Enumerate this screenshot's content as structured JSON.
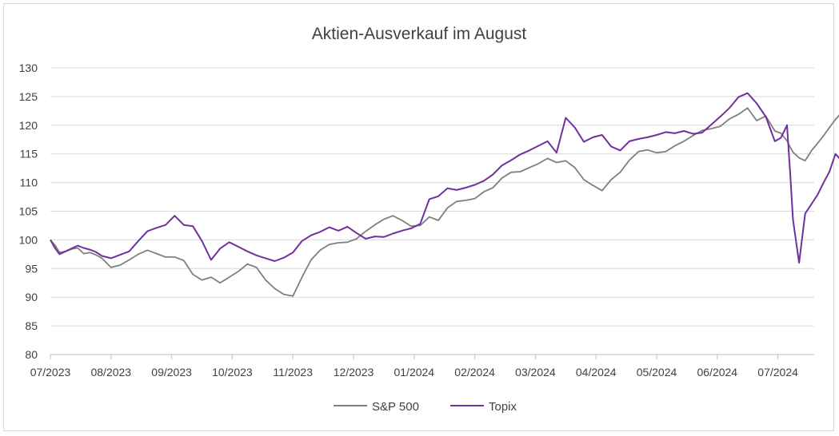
{
  "chart_data": {
    "type": "line",
    "title": "Aktien-Ausverkauf im August",
    "xlabel": "",
    "ylabel": "",
    "ylim": [
      80,
      130
    ],
    "yticks": [
      80,
      85,
      90,
      95,
      100,
      105,
      110,
      115,
      120,
      125,
      130
    ],
    "xticks": [
      "07/2023",
      "08/2023",
      "09/2023",
      "10/2023",
      "11/2023",
      "12/2023",
      "01/2024",
      "02/2024",
      "03/2024",
      "04/2024",
      "05/2024",
      "06/2024",
      "07/2024"
    ],
    "grid": "horizontal",
    "legend_position": "bottom",
    "colors": {
      "S&P 500": "#7f7f7f",
      "Topix": "#7030a0",
      "grid": "#d9d9d9",
      "axis": "#bfbfbf"
    },
    "x": [
      0,
      0.08,
      0.15,
      0.25,
      0.35,
      0.45,
      0.55,
      0.65,
      0.75,
      0.85,
      1,
      1.15,
      1.3,
      1.45,
      1.6,
      1.75,
      1.9,
      2.05,
      2.2,
      2.35,
      2.5,
      2.65,
      2.8,
      2.95,
      3.1,
      3.25,
      3.4,
      3.55,
      3.7,
      3.85,
      4,
      4.15,
      4.3,
      4.45,
      4.6,
      4.75,
      4.9,
      5.05,
      5.2,
      5.35,
      5.5,
      5.65,
      5.8,
      5.95,
      6.1,
      6.25,
      6.4,
      6.55,
      6.7,
      6.85,
      7,
      7.15,
      7.3,
      7.45,
      7.6,
      7.75,
      7.9,
      8.05,
      8.2,
      8.35,
      8.5,
      8.65,
      8.8,
      8.95,
      9.1,
      9.25,
      9.4,
      9.55,
      9.7,
      9.85,
      10,
      10.15,
      10.3,
      10.45,
      10.6,
      10.75,
      10.9,
      11.05,
      11.2,
      11.35,
      11.5,
      11.65,
      11.8,
      11.95,
      12.05,
      12.15,
      12.2,
      12.25,
      12.35,
      12.45,
      12.55,
      12.65,
      12.75,
      12.85,
      12.95,
      13.05
    ],
    "series": [
      {
        "name": "S&P 500",
        "values": [
          100,
          99,
          97.8,
          98,
          98.4,
          98.6,
          97.6,
          97.8,
          97.4,
          96.8,
          95.2,
          95.6,
          96.5,
          97.5,
          98.2,
          97.6,
          97,
          97,
          96.4,
          94,
          93,
          93.5,
          92.5,
          93.5,
          94.5,
          95.8,
          95.2,
          93,
          91.5,
          90.5,
          90.2,
          93.5,
          96.5,
          98.2,
          99.2,
          99.5,
          99.6,
          100.2,
          101.5,
          102.6,
          103.6,
          104.2,
          103.4,
          102.4,
          102.5,
          104,
          103.4,
          105.6,
          106.7,
          106.9,
          107.2,
          108.4,
          109.1,
          110.8,
          111.8,
          111.9,
          112.6,
          113.3,
          114.2,
          113.5,
          113.8,
          112.6,
          110.5,
          109.5,
          108.6,
          110.5,
          111.8,
          113.9,
          115.4,
          115.7,
          115.2,
          115.4,
          116.4,
          117.2,
          118.2,
          119.1,
          119.4,
          119.8,
          121.1,
          121.9,
          123,
          120.8,
          121.6,
          119,
          118.6,
          117.3,
          116.2,
          115.3,
          114.3,
          113.8,
          115.5,
          116.8,
          118.1,
          119.6,
          121,
          122.2
        ]
      },
      {
        "name": "Topix",
        "values": [
          100,
          98.5,
          97.5,
          98,
          98.5,
          99,
          98.6,
          98.3,
          97.9,
          97.2,
          96.8,
          97.4,
          98,
          99.8,
          101.5,
          102.1,
          102.6,
          104.2,
          102.6,
          102.4,
          99.8,
          96.5,
          98.5,
          99.6,
          98.8,
          98,
          97.3,
          96.8,
          96.3,
          96.9,
          97.8,
          99.8,
          100.8,
          101.4,
          102.2,
          101.6,
          102.3,
          101.2,
          100.2,
          100.6,
          100.5,
          101.1,
          101.6,
          102,
          102.8,
          107.1,
          107.6,
          109,
          108.7,
          109.1,
          109.6,
          110.3,
          111.4,
          113,
          113.9,
          114.9,
          115.6,
          116.4,
          117.2,
          115.2,
          121.3,
          119.6,
          117.1,
          117.9,
          118.3,
          116.3,
          115.6,
          117.2,
          117.6,
          117.9,
          118.3,
          118.8,
          118.6,
          119,
          118.5,
          118.7,
          120.1,
          121.5,
          123,
          124.9,
          125.6,
          123.8,
          121.5,
          117.2,
          117.8,
          120,
          112,
          103.5,
          96,
          104.6,
          106.2,
          107.8,
          109.9,
          111.9,
          115,
          113.8
        ]
      }
    ]
  }
}
